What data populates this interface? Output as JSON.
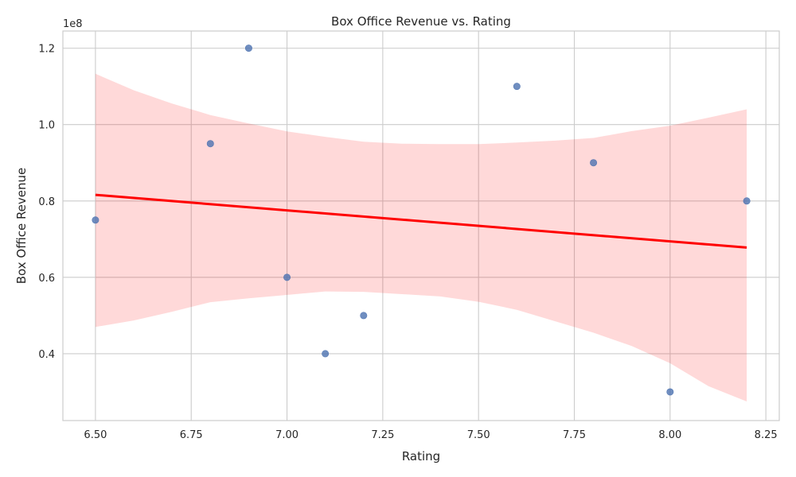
{
  "chart_data": {
    "type": "scatter",
    "title": "Box Office Revenue vs. Rating",
    "xlabel": "Rating",
    "ylabel": "Box Office Revenue",
    "y_offset_label": "1e8",
    "xlim": [
      6.415,
      8.285
    ],
    "ylim": [
      22500000,
      124500000
    ],
    "x_ticks": [
      6.5,
      6.75,
      7.0,
      7.25,
      7.5,
      7.75,
      8.0,
      8.25
    ],
    "x_tick_labels": [
      "6.50",
      "6.75",
      "7.00",
      "7.25",
      "7.50",
      "7.75",
      "8.00",
      "8.25"
    ],
    "y_ticks": [
      40000000,
      60000000,
      80000000,
      100000000,
      120000000
    ],
    "y_tick_labels": [
      "0.4",
      "0.6",
      "0.8",
      "1.0",
      "1.2"
    ],
    "grid": true,
    "points": [
      {
        "x": 6.5,
        "y": 75000000
      },
      {
        "x": 6.8,
        "y": 95000000
      },
      {
        "x": 6.9,
        "y": 120000000
      },
      {
        "x": 7.0,
        "y": 60000000
      },
      {
        "x": 7.1,
        "y": 40000000
      },
      {
        "x": 7.2,
        "y": 50000000
      },
      {
        "x": 7.6,
        "y": 110000000
      },
      {
        "x": 7.8,
        "y": 90000000
      },
      {
        "x": 8.0,
        "y": 30000000
      },
      {
        "x": 8.2,
        "y": 80000000
      }
    ],
    "regression": {
      "color": "#ff0000",
      "line": [
        {
          "x": 6.5,
          "y": 81600000
        },
        {
          "x": 8.2,
          "y": 67800000
        }
      ],
      "ci_upper": [
        {
          "x": 6.5,
          "y": 113300000
        },
        {
          "x": 6.6,
          "y": 109000000
        },
        {
          "x": 6.7,
          "y": 105500000
        },
        {
          "x": 6.8,
          "y": 102500000
        },
        {
          "x": 6.9,
          "y": 100300000
        },
        {
          "x": 7.0,
          "y": 98200000
        },
        {
          "x": 7.1,
          "y": 96800000
        },
        {
          "x": 7.2,
          "y": 95500000
        },
        {
          "x": 7.3,
          "y": 95000000
        },
        {
          "x": 7.4,
          "y": 94900000
        },
        {
          "x": 7.5,
          "y": 94900000
        },
        {
          "x": 7.6,
          "y": 95300000
        },
        {
          "x": 7.7,
          "y": 95800000
        },
        {
          "x": 7.8,
          "y": 96500000
        },
        {
          "x": 7.9,
          "y": 98300000
        },
        {
          "x": 8.0,
          "y": 99700000
        },
        {
          "x": 8.1,
          "y": 101800000
        },
        {
          "x": 8.2,
          "y": 104000000
        }
      ],
      "ci_lower": [
        {
          "x": 6.5,
          "y": 47000000
        },
        {
          "x": 6.6,
          "y": 48700000
        },
        {
          "x": 6.7,
          "y": 51000000
        },
        {
          "x": 6.8,
          "y": 53500000
        },
        {
          "x": 6.9,
          "y": 54500000
        },
        {
          "x": 7.0,
          "y": 55400000
        },
        {
          "x": 7.1,
          "y": 56300000
        },
        {
          "x": 7.2,
          "y": 56200000
        },
        {
          "x": 7.3,
          "y": 55600000
        },
        {
          "x": 7.4,
          "y": 55000000
        },
        {
          "x": 7.5,
          "y": 53600000
        },
        {
          "x": 7.6,
          "y": 51500000
        },
        {
          "x": 7.7,
          "y": 48500000
        },
        {
          "x": 7.8,
          "y": 45500000
        },
        {
          "x": 7.9,
          "y": 42000000
        },
        {
          "x": 8.0,
          "y": 37500000
        },
        {
          "x": 8.1,
          "y": 31500000
        },
        {
          "x": 8.2,
          "y": 27500000
        }
      ]
    }
  }
}
